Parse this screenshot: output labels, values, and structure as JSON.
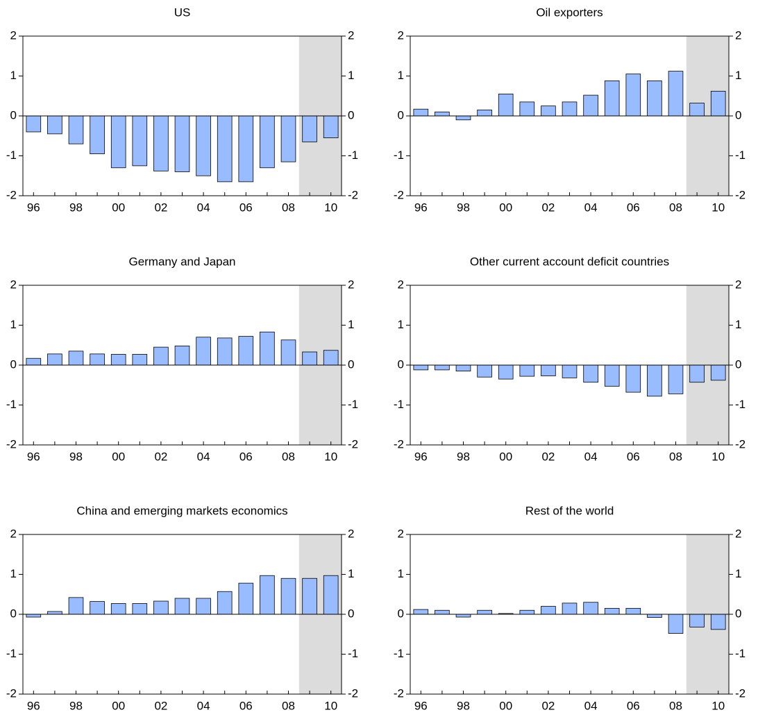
{
  "chart_data": [
    {
      "type": "bar",
      "title": "US",
      "categories": [
        "96",
        null,
        "98",
        null,
        "00",
        null,
        "02",
        null,
        "04",
        null,
        "06",
        null,
        "08",
        null,
        "10"
      ],
      "values": [
        -0.4,
        -0.45,
        -0.7,
        -0.95,
        -1.3,
        -1.25,
        -1.38,
        -1.4,
        -1.5,
        -1.65,
        -1.65,
        -1.3,
        -1.15,
        -0.65,
        -0.55
      ],
      "color": "#99bbff",
      "shade_from_index": 13,
      "shade_color": "#dcdcdc",
      "ylim": [
        -2,
        2
      ],
      "yticks": [
        -2,
        -1,
        0,
        1,
        2
      ]
    },
    {
      "type": "bar",
      "title": "Oil exporters",
      "categories": [
        "96",
        null,
        "98",
        null,
        "00",
        null,
        "02",
        null,
        "04",
        null,
        "06",
        null,
        "08",
        null,
        "10"
      ],
      "values": [
        0.17,
        0.1,
        -0.1,
        0.15,
        0.55,
        0.35,
        0.25,
        0.35,
        0.52,
        0.88,
        1.05,
        0.88,
        1.12,
        0.32,
        0.62
      ],
      "color": "#99bbff",
      "shade_from_index": 13,
      "shade_color": "#dcdcdc",
      "ylim": [
        -2,
        2
      ],
      "yticks": [
        -2,
        -1,
        0,
        1,
        2
      ]
    },
    {
      "type": "bar",
      "title": "Germany and Japan",
      "categories": [
        "96",
        null,
        "98",
        null,
        "00",
        null,
        "02",
        null,
        "04",
        null,
        "06",
        null,
        "08",
        null,
        "10"
      ],
      "values": [
        0.17,
        0.28,
        0.35,
        0.28,
        0.27,
        0.27,
        0.45,
        0.48,
        0.7,
        0.68,
        0.72,
        0.83,
        0.63,
        0.33,
        0.37
      ],
      "color": "#99bbff",
      "shade_from_index": 13,
      "shade_color": "#dcdcdc",
      "ylim": [
        -2,
        2
      ],
      "yticks": [
        -2,
        -1,
        0,
        1,
        2
      ]
    },
    {
      "type": "bar",
      "title": "Other current account deficit countries",
      "categories": [
        "96",
        null,
        "98",
        null,
        "00",
        null,
        "02",
        null,
        "04",
        null,
        "06",
        null,
        "08",
        null,
        "10"
      ],
      "values": [
        -0.12,
        -0.12,
        -0.15,
        -0.3,
        -0.35,
        -0.28,
        -0.27,
        -0.32,
        -0.43,
        -0.53,
        -0.68,
        -0.78,
        -0.72,
        -0.43,
        -0.38
      ],
      "color": "#99bbff",
      "shade_from_index": 13,
      "shade_color": "#dcdcdc",
      "ylim": [
        -2,
        2
      ],
      "yticks": [
        -2,
        -1,
        0,
        1,
        2
      ]
    },
    {
      "type": "bar",
      "title": "China and emerging markets economics",
      "categories": [
        "96",
        null,
        "98",
        null,
        "00",
        null,
        "02",
        null,
        "04",
        null,
        "06",
        null,
        "08",
        null,
        "10"
      ],
      "values": [
        -0.07,
        0.07,
        0.42,
        0.32,
        0.27,
        0.27,
        0.33,
        0.4,
        0.4,
        0.57,
        0.78,
        0.97,
        0.9,
        0.9,
        0.97
      ],
      "color": "#99bbff",
      "shade_from_index": 13,
      "shade_color": "#dcdcdc",
      "ylim": [
        -2,
        2
      ],
      "yticks": [
        -2,
        -1,
        0,
        1,
        2
      ]
    },
    {
      "type": "bar",
      "title": "Rest of the world",
      "categories": [
        "96",
        null,
        "98",
        null,
        "00",
        null,
        "02",
        null,
        "04",
        null,
        "06",
        null,
        "08",
        null,
        "10"
      ],
      "values": [
        0.12,
        0.1,
        -0.07,
        0.1,
        0.02,
        0.1,
        0.2,
        0.28,
        0.3,
        0.15,
        0.15,
        -0.08,
        -0.48,
        -0.32,
        -0.38
      ],
      "color": "#99bbff",
      "shade_from_index": 13,
      "shade_color": "#dcdcdc",
      "ylim": [
        -2,
        2
      ],
      "yticks": [
        -2,
        -1,
        0,
        1,
        2
      ]
    }
  ]
}
